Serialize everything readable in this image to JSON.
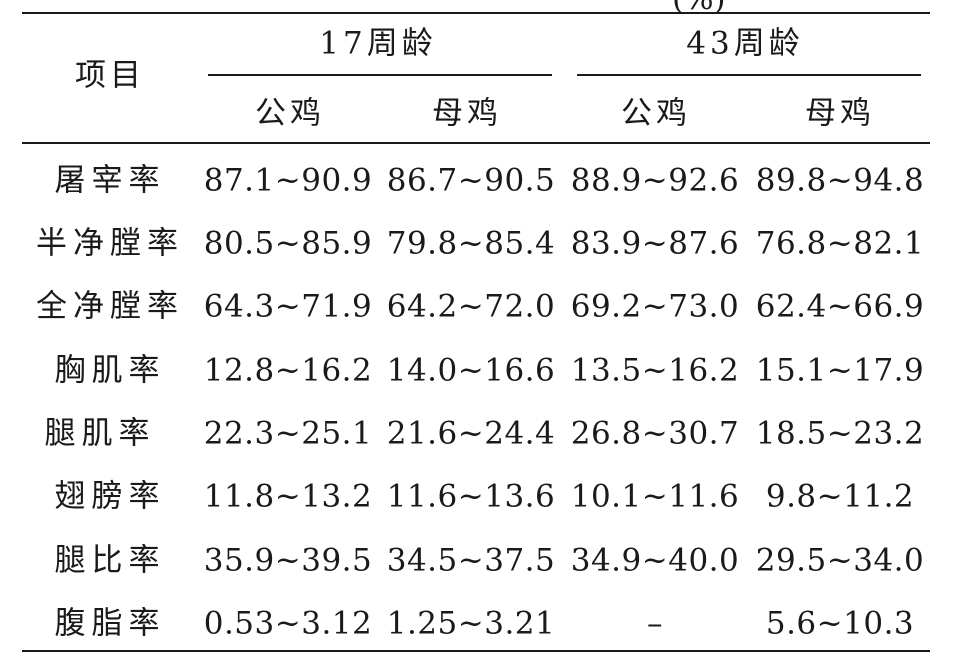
{
  "table": {
    "header": {
      "item_label": "项目",
      "groups": [
        "17周龄",
        "43周龄"
      ],
      "sub_labels": [
        "公鸡",
        "母鸡",
        "公鸡",
        "母鸡"
      ]
    },
    "rows": [
      {
        "label": "屠宰率",
        "values": [
          "87.1~90.9",
          "86.7~90.5",
          "88.9~92.6",
          "89.8~94.8"
        ]
      },
      {
        "label": "半净膛率",
        "values": [
          "80.5~85.9",
          "79.8~85.4",
          "83.9~87.6",
          "76.8~82.1"
        ]
      },
      {
        "label": "全净膛率",
        "values": [
          "64.3~71.9",
          "64.2~72.0",
          "69.2~73.0",
          "62.4~66.9"
        ]
      },
      {
        "label": "胸肌率",
        "values": [
          "12.8~16.2",
          "14.0~16.6",
          "13.5~16.2",
          "15.1~17.9"
        ]
      },
      {
        "label": "腿肌率",
        "values": [
          "22.3~25.1",
          "21.6~24.4",
          "26.8~30.7",
          "18.5~23.2"
        ]
      },
      {
        "label": "翅膀率",
        "values": [
          "11.8~13.2",
          "11.6~13.6",
          "10.1~11.6",
          "9.8~11.2"
        ]
      },
      {
        "label": "腿比率",
        "values": [
          "35.9~39.5",
          "34.5~37.5",
          "34.9~40.0",
          "29.5~34.0"
        ]
      },
      {
        "label": "腹脂率",
        "values": [
          "0.53~3.12",
          "1.25~3.21",
          "–",
          "5.6~10.3"
        ]
      }
    ]
  }
}
